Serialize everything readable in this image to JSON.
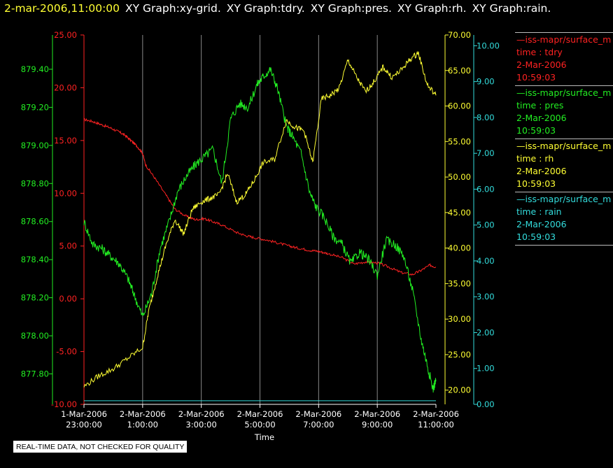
{
  "header": {
    "timestamp": "2-mar-2006,11:00:00",
    "graph_titles": [
      "XY Graph:xy-grid.",
      "XY Graph:tdry.",
      "XY Graph:pres.",
      "XY Graph:rh.",
      "XY Graph:rain."
    ]
  },
  "colors": {
    "tdry": "#ff2222",
    "pres": "#22ee22",
    "rh": "#ffff33",
    "rain": "#33dddd",
    "grid": "#888888",
    "text": "#ffffff"
  },
  "legend": [
    {
      "line": "—iss-mapr/surface_m",
      "var": "time : tdry",
      "date": "2-Mar-2006",
      "time": "10:59:03",
      "color": "#ff2222"
    },
    {
      "line": "—iss-mapr/surface_m",
      "var": "time : pres",
      "date": "2-Mar-2006",
      "time": "10:59:03",
      "color": "#22ee22"
    },
    {
      "line": "—iss-mapr/surface_m",
      "var": "time : rh",
      "date": "2-Mar-2006",
      "time": "10:59:03",
      "color": "#ffff33"
    },
    {
      "line": "—iss-mapr/surface_m",
      "var": "time : rain",
      "date": "2-Mar-2006",
      "time": "10:59:03",
      "color": "#33dddd"
    }
  ],
  "disclaimer": "REAL-TIME DATA, NOT CHECKED FOR QUALITY",
  "chart_data": {
    "type": "line",
    "xlabel": "Time",
    "x_ticks": [
      {
        "l1": "1-Mar-2006",
        "l2": "23:00:00",
        "hour": 0
      },
      {
        "l1": "2-Mar-2006",
        "l2": "1:00:00",
        "hour": 2
      },
      {
        "l1": "2-Mar-2006",
        "l2": "3:00:00",
        "hour": 4
      },
      {
        "l1": "2-Mar-2006",
        "l2": "5:00:00",
        "hour": 6
      },
      {
        "l1": "2-Mar-2006",
        "l2": "7:00:00",
        "hour": 8
      },
      {
        "l1": "2-Mar-2006",
        "l2": "9:00:00",
        "hour": 10
      },
      {
        "l1": "2-Mar-2006",
        "l2": "11:00:00",
        "hour": 12
      }
    ],
    "xlim_hours": [
      0,
      12
    ],
    "grid": "vertical",
    "axes": {
      "tdry": {
        "ylim": [
          -10,
          25
        ],
        "ticks": [
          "25.00",
          "20.00",
          "15.00",
          "10.00",
          "5.00",
          "0.00",
          "-5.00",
          "-10.00"
        ],
        "side": "left-inner"
      },
      "pres": {
        "ylim": [
          877.64,
          879.58
        ],
        "ticks": [
          "879.40",
          "879.20",
          "879.00",
          "878.80",
          "878.60",
          "878.40",
          "878.20",
          "878.00",
          "877.80"
        ],
        "side": "left-outer"
      },
      "rh": {
        "ylim": [
          18.0,
          70.0
        ],
        "ticks": [
          "70.00",
          "65.00",
          "60.00",
          "55.00",
          "50.00",
          "45.00",
          "40.00",
          "35.00",
          "30.00",
          "25.00",
          "20.00"
        ],
        "side": "right-inner"
      },
      "rain": {
        "ylim": [
          0,
          10.3
        ],
        "ticks": [
          "10.00",
          "9.00",
          "8.00",
          "7.00",
          "6.00",
          "5.00",
          "4.00",
          "3.00",
          "2.00",
          "1.00",
          "0.00"
        ],
        "side": "right-outer"
      }
    },
    "series": [
      {
        "key": "tdry",
        "x": [
          0,
          0.3,
          0.6,
          0.9,
          1.2,
          1.4,
          1.6,
          1.8,
          2.0,
          2.1,
          2.4,
          2.8,
          3.1,
          3.5,
          3.8,
          4.1,
          4.4,
          4.7,
          5.2,
          5.5,
          5.8,
          6.2,
          6.6,
          7.0,
          7.3,
          7.7,
          8.0,
          8.3,
          8.8,
          9.2,
          9.6,
          10.0,
          10.4,
          10.8,
          11.2,
          11.5,
          11.8,
          12.0
        ],
        "y": [
          17.0,
          16.8,
          16.5,
          16.2,
          15.8,
          15.5,
          15.0,
          14.5,
          13.8,
          12.7,
          11.5,
          9.8,
          8.5,
          7.8,
          7.5,
          7.6,
          7.3,
          7.0,
          6.3,
          6.0,
          5.8,
          5.6,
          5.3,
          5.0,
          4.8,
          4.6,
          4.5,
          4.3,
          3.9,
          3.3,
          3.5,
          3.4,
          3.0,
          2.5,
          2.3,
          2.7,
          3.2,
          3.0
        ]
      },
      {
        "key": "pres",
        "x": [
          0,
          0.3,
          0.6,
          0.9,
          1.2,
          1.5,
          1.7,
          2.0,
          2.3,
          2.6,
          2.9,
          3.2,
          3.5,
          3.8,
          4.1,
          4.4,
          4.7,
          5.0,
          5.3,
          5.6,
          5.9,
          6.1,
          6.35,
          6.6,
          6.9,
          7.1,
          7.4,
          7.7,
          7.9,
          8.2,
          8.5,
          8.8,
          9.1,
          9.4,
          9.7,
          10.0,
          10.3,
          10.6,
          10.9,
          11.2,
          11.5,
          11.7,
          11.9,
          12.0
        ],
        "y": [
          878.6,
          878.48,
          878.46,
          878.42,
          878.38,
          878.3,
          878.22,
          878.1,
          878.22,
          878.46,
          878.6,
          878.76,
          878.84,
          878.9,
          878.94,
          878.98,
          878.8,
          879.14,
          879.22,
          879.2,
          879.32,
          879.36,
          879.4,
          879.3,
          879.1,
          879.05,
          878.96,
          878.75,
          878.68,
          878.62,
          878.52,
          878.48,
          878.38,
          878.44,
          878.4,
          878.32,
          878.5,
          878.48,
          878.42,
          878.24,
          877.98,
          877.85,
          877.72,
          877.77
        ]
      },
      {
        "key": "rh",
        "x": [
          0,
          0.5,
          1.0,
          1.5,
          2.0,
          2.2,
          2.5,
          2.8,
          3.1,
          3.4,
          3.7,
          4.0,
          4.3,
          4.6,
          4.9,
          5.2,
          5.5,
          5.8,
          6.1,
          6.5,
          6.9,
          7.2,
          7.5,
          7.8,
          8.1,
          8.4,
          8.7,
          9.0,
          9.3,
          9.6,
          9.9,
          10.2,
          10.5,
          10.8,
          11.1,
          11.4,
          11.7,
          12.0
        ],
        "y": [
          20.5,
          22.0,
          23.0,
          24.5,
          26.0,
          31.0,
          36.0,
          40.5,
          44.0,
          42.0,
          45.5,
          46.5,
          47.0,
          47.5,
          50.5,
          46.5,
          47.5,
          49.5,
          52.0,
          52.5,
          58.0,
          57.0,
          56.5,
          52.0,
          61.0,
          61.5,
          62.5,
          66.5,
          64.0,
          62.0,
          63.5,
          65.5,
          64.0,
          65.0,
          66.5,
          67.5,
          63.0,
          61.5
        ]
      },
      {
        "key": "rain",
        "x": [
          0,
          12
        ],
        "y": [
          0.1,
          0.1
        ]
      }
    ]
  }
}
